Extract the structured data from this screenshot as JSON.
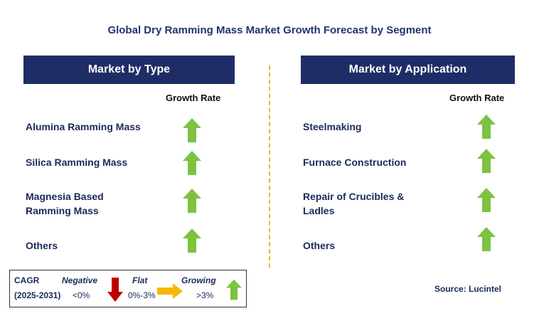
{
  "title": "Global Dry Ramming Mass Market Growth Forecast by Segment",
  "left_panel": {
    "header": "Market by Type",
    "growth_label": "Growth Rate",
    "items": [
      {
        "label": "Alumina Ramming Mass",
        "trend": "growing"
      },
      {
        "label": "Silica Ramming Mass",
        "trend": "growing"
      },
      {
        "label": "Magnesia Based Ramming Mass",
        "trend": "growing"
      },
      {
        "label": "Others",
        "trend": "growing"
      }
    ]
  },
  "right_panel": {
    "header": "Market by Application",
    "growth_label": "Growth Rate",
    "items": [
      {
        "label": "Steelmaking",
        "trend": "growing"
      },
      {
        "label": "Furnace Construction",
        "trend": "growing"
      },
      {
        "label": "Repair of Crucibles & Ladles",
        "trend": "growing"
      },
      {
        "label": "Others",
        "trend": "growing"
      }
    ]
  },
  "legend": {
    "cagr_label": "CAGR",
    "period": "(2025-2031)",
    "negative_label": "Negative",
    "negative_range": "<0%",
    "flat_label": "Flat",
    "flat_range": "0%-3%",
    "growing_label": "Growing",
    "growing_range": ">3%"
  },
  "source": "Source: Lucintel",
  "colors": {
    "header_bg": "#1f2d66",
    "growing": "#7dc242",
    "negative": "#c00000",
    "flat": "#f5b800",
    "divider": "#f0b43c"
  },
  "icons": {
    "growing": "up-arrow-icon",
    "negative": "down-arrow-icon",
    "flat": "right-arrow-icon"
  }
}
